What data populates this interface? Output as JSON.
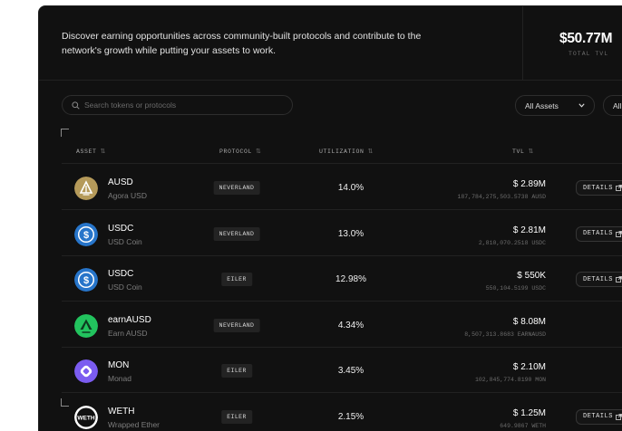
{
  "header": {
    "intro": "Discover earning opportunities across community-built protocols and contribute to the network's growth while putting your assets to work.",
    "total_tvl_value": "$50.77M",
    "total_tvl_label": "TOTAL TVL"
  },
  "filters": {
    "search_placeholder": "Search tokens or protocols",
    "asset_filter": "All Assets",
    "protocol_filter": "All"
  },
  "table": {
    "columns": {
      "asset": "ASSET",
      "protocol": "PROTOCOL",
      "utilization": "UTILIZATION",
      "tvl": "TVL",
      "sort_glyph": "⇅"
    },
    "details_label": "DETAILS",
    "rows": [
      {
        "asset": "AUSD",
        "asset_sub": "Agora USD",
        "protocol": "NEVERLAND",
        "utilization": "14.0%",
        "tvl_usd": "$ 2.89M",
        "tvl_raw": "187,784,275,503.5738 AUSD",
        "icon": "agora-usd-icon",
        "color": "#b59a5a",
        "details": true
      },
      {
        "asset": "USDC",
        "asset_sub": "USD Coin",
        "protocol": "NEVERLAND",
        "utilization": "13.0%",
        "tvl_usd": "$ 2.81M",
        "tvl_raw": "2,810,070.2518 USDC",
        "icon": "usdc-icon",
        "color": "#2775ca",
        "details": true
      },
      {
        "asset": "USDC",
        "asset_sub": "USD Coin",
        "protocol": "EILER",
        "utilization": "12.98%",
        "tvl_usd": "$ 550K",
        "tvl_raw": "550,104.5199 USDC",
        "icon": "usdc-icon",
        "color": "#2775ca",
        "details": true
      },
      {
        "asset": "earnAUSD",
        "asset_sub": "Earn AUSD",
        "protocol": "NEVERLAND",
        "utilization": "4.34%",
        "tvl_usd": "$ 8.08M",
        "tvl_raw": "8,507,313.8683 EARNAUSD",
        "icon": "earn-ausd-icon",
        "color": "#22c35e",
        "details": false
      },
      {
        "asset": "MON",
        "asset_sub": "Monad",
        "protocol": "EILER",
        "utilization": "3.45%",
        "tvl_usd": "$ 2.10M",
        "tvl_raw": "102,845,774.8190 MON",
        "icon": "monad-icon",
        "color": "#7b5cf0",
        "details": false
      },
      {
        "asset": "WETH",
        "asset_sub": "Wrapped Ether",
        "protocol": "EILER",
        "utilization": "2.15%",
        "tvl_usd": "$ 1.25M",
        "tvl_raw": "649.9867 WETH",
        "icon": "weth-icon",
        "color": "#ffffff",
        "details": true
      }
    ]
  }
}
